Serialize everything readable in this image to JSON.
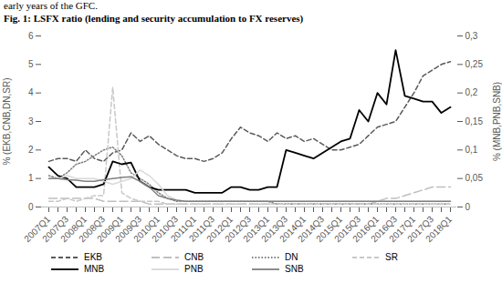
{
  "chart_data": {
    "type": "line",
    "annotations": [
      "early years of the GFC."
    ],
    "title": "Fig. 1:  LSFX ratio (lending and security accumulation to FX reserves)",
    "ylabel": "% (EKB,CNB,DN,SR)",
    "y2label": "% (MNB,PNB,SNB)",
    "categories": [
      "2007Q1",
      null,
      "2007Q3",
      null,
      "2008Q1",
      null,
      "2008Q3",
      null,
      "2009Q1",
      null,
      "2009Q3",
      null,
      "2010Q1",
      null,
      "2010Q3",
      null,
      "2011Q1",
      null,
      "2011Q3",
      null,
      "2012Q1",
      null,
      "2012Q3",
      null,
      "2013Q1",
      null,
      "2013Q3",
      null,
      "2014Q1",
      null,
      "2014Q3",
      null,
      "2015Q1",
      null,
      "2015Q3",
      null,
      "2016Q1",
      null,
      "2016Q3",
      null,
      "2017Q1",
      null,
      "2017Q3",
      null,
      "2018Q1"
    ],
    "ylim": [
      0,
      6
    ],
    "yticks": [
      0,
      1,
      2,
      3,
      4,
      5,
      6
    ],
    "y2lim": [
      0,
      0.3
    ],
    "y2ticks": [
      0,
      {
        "value": 0.05,
        "label": "0,05"
      },
      {
        "value": 0.1,
        "label": "0,1"
      },
      {
        "value": 0.15,
        "label": "0,15"
      },
      {
        "value": 0.2,
        "label": "0,2"
      },
      {
        "value": 0.25,
        "label": "0,25"
      },
      {
        "value": 0.3,
        "label": "0,3"
      }
    ],
    "grid": false,
    "legend": "bottom",
    "series": [
      {
        "name": "EKB",
        "color": "#595959",
        "line_style": "dashed",
        "axis": "y",
        "values": [
          1.6,
          1.7,
          1.7,
          1.6,
          2.0,
          1.7,
          1.6,
          1.9,
          2.0,
          2.6,
          2.3,
          2.5,
          2.2,
          2.0,
          1.8,
          1.7,
          1.7,
          1.6,
          1.7,
          1.9,
          2.4,
          2.8,
          2.6,
          2.5,
          2.3,
          2.6,
          2.4,
          2.5,
          2.3,
          2.4,
          2.2,
          2.0,
          2.0,
          2.1,
          2.2,
          2.5,
          2.8,
          2.9,
          3.0,
          3.5,
          4.0,
          4.6,
          4.8,
          5.0,
          5.1
        ]
      },
      {
        "name": "CNB",
        "color": "#bfbfbf",
        "line_style": "longdash",
        "axis": "y",
        "values": [
          0.3,
          0.3,
          0.3,
          0.3,
          0.3,
          0.3,
          0.2,
          0.2,
          0.2,
          0.2,
          0.2,
          0.1,
          0.1,
          0.1,
          0.1,
          0.1,
          0.1,
          0.1,
          0.1,
          0.1,
          0.1,
          0.1,
          0.1,
          0.1,
          0.1,
          0.1,
          0.1,
          0.1,
          0.1,
          0.1,
          0.1,
          0.1,
          0.1,
          0.1,
          0.1,
          0.1,
          0.2,
          0.3,
          0.3,
          0.4,
          0.5,
          0.6,
          0.7,
          0.7,
          0.7
        ]
      },
      {
        "name": "DN",
        "color": "#7f7f7f",
        "line_style": "dotted",
        "axis": "y",
        "values": [
          1.1,
          1.0,
          1.2,
          1.5,
          1.6,
          1.8,
          2.0,
          2.1,
          1.8,
          1.2,
          1.0,
          0.8,
          0.5,
          0.3,
          0.2,
          0.2,
          0.2,
          0.2,
          0.2,
          0.2,
          0.2,
          0.2,
          0.2,
          0.2,
          0.2,
          0.1,
          0.1,
          0.1,
          0.1,
          0.1,
          0.1,
          0.1,
          0.1,
          0.1,
          0.1,
          0.1,
          0.1,
          0.1,
          0.1,
          0.1,
          0.1,
          0.1,
          0.1,
          0.1,
          0.1
        ]
      },
      {
        "name": "SR",
        "color": "#c8c8c8",
        "line_style": "dashed",
        "axis": "y",
        "values": [
          0.2,
          0.2,
          0.3,
          0.2,
          0.3,
          0.4,
          0.4,
          4.2,
          0.5,
          0.3,
          0.2,
          0.2,
          0.2,
          0.1,
          0.1,
          0.1,
          0.1,
          0.1,
          0.1,
          0.1,
          0.1,
          0.1,
          0.1,
          0.1,
          0.1,
          0.1,
          0.1,
          0.1,
          0.1,
          0.1,
          0.1,
          0.1,
          0.1,
          0.1,
          0.1,
          0.1,
          0.1,
          0.1,
          0.1,
          0.1,
          0.1,
          0.1,
          0.1,
          0.1,
          0.1
        ]
      },
      {
        "name": "MNB",
        "color": "#000000",
        "line_style": "solid",
        "axis": "y2",
        "values": [
          0.07,
          0.055,
          0.05,
          0.035,
          0.035,
          0.035,
          0.04,
          0.08,
          0.075,
          0.078,
          0.045,
          0.035,
          0.03,
          0.03,
          0.03,
          0.03,
          0.025,
          0.025,
          0.025,
          0.025,
          0.035,
          0.035,
          0.03,
          0.03,
          0.035,
          0.035,
          0.1,
          0.095,
          0.09,
          0.085,
          0.095,
          0.105,
          0.115,
          0.12,
          0.17,
          0.15,
          0.2,
          0.18,
          0.275,
          0.195,
          0.19,
          0.185,
          0.185,
          0.165,
          0.175
        ]
      },
      {
        "name": "PNB",
        "color": "#d9d9d9",
        "line_style": "solid",
        "axis": "y2",
        "values": [
          0.05,
          0.05,
          0.055,
          0.05,
          0.05,
          0.05,
          0.045,
          0.04,
          0.045,
          0.05,
          0.065,
          0.055,
          0.04,
          0.02,
          0.012,
          0.01,
          0.01,
          0.01,
          0.01,
          0.01,
          0.01,
          0.01,
          0.01,
          0.01,
          0.01,
          0.01,
          0.01,
          0.01,
          0.01,
          0.01,
          0.01,
          0.01,
          0.01,
          0.01,
          0.01,
          0.01,
          0.01,
          0.01,
          0.01,
          0.01,
          0.01,
          0.01,
          0.01,
          0.01,
          0.01
        ]
      },
      {
        "name": "SNB",
        "color": "#808080",
        "line_style": "solid",
        "axis": "y2",
        "values": [
          0.05,
          0.05,
          0.048,
          0.047,
          0.045,
          0.045,
          0.048,
          0.05,
          0.052,
          0.053,
          0.045,
          0.035,
          0.02,
          0.015,
          0.012,
          0.01,
          0.01,
          0.01,
          0.01,
          0.01,
          0.01,
          0.01,
          0.01,
          0.01,
          0.01,
          0.01,
          0.01,
          0.01,
          0.01,
          0.01,
          0.01,
          0.01,
          0.01,
          0.01,
          0.01,
          0.01,
          0.01,
          0.01,
          0.01,
          0.01,
          0.01,
          0.01,
          0.01,
          0.01,
          0.01
        ]
      }
    ]
  }
}
